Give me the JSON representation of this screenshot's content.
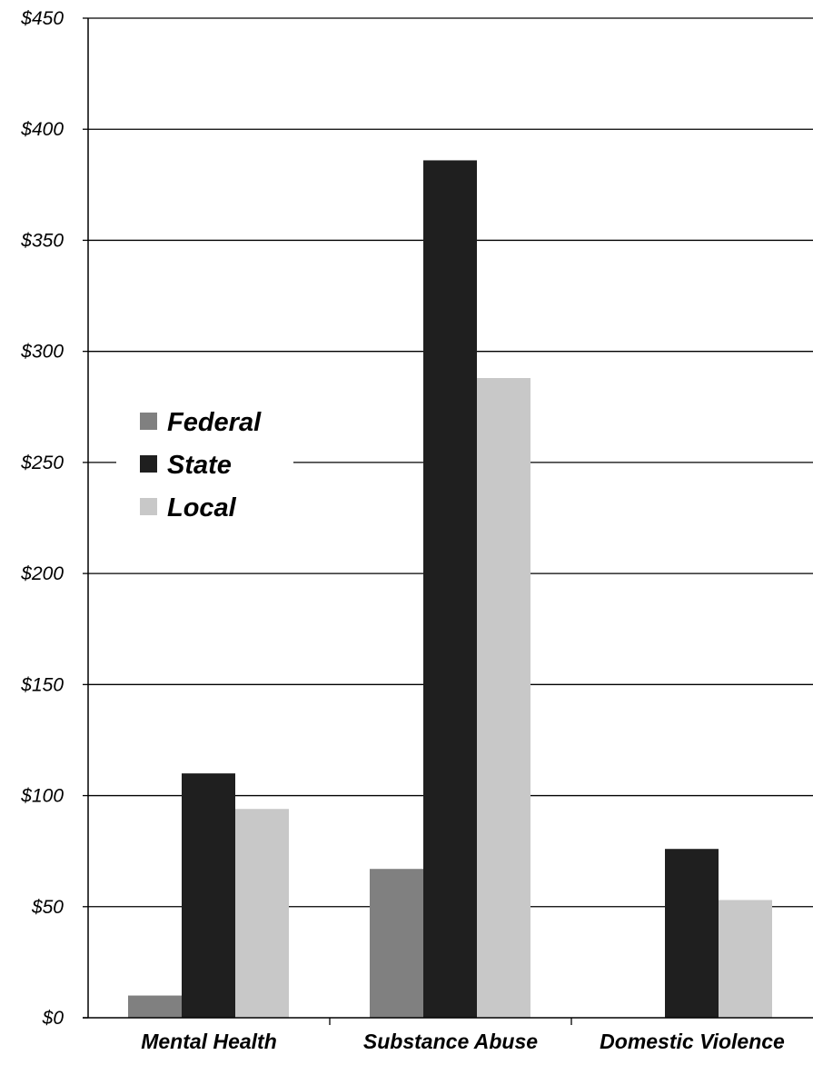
{
  "chart_data": {
    "type": "bar",
    "title": "",
    "xlabel": "",
    "ylabel": "",
    "categories": [
      "Mental Health",
      "Substance Abuse",
      "Domestic Violence"
    ],
    "series": [
      {
        "name": "Federal",
        "color": "#808080",
        "values": [
          10,
          67,
          0
        ]
      },
      {
        "name": "State",
        "color": "#1f1f1f",
        "values": [
          110,
          386,
          76
        ]
      },
      {
        "name": "Local",
        "color": "#c8c8c8",
        "values": [
          94,
          288,
          53
        ]
      }
    ],
    "ylim": [
      0,
      450
    ],
    "yticks": [
      0,
      50,
      100,
      150,
      200,
      250,
      300,
      350,
      400,
      450
    ],
    "ytick_labels": [
      "$0",
      "$50",
      "$100",
      "$150",
      "$200",
      "$250",
      "$300",
      "$350",
      "$400",
      "$450"
    ],
    "grid": true,
    "legend_position": "left"
  }
}
